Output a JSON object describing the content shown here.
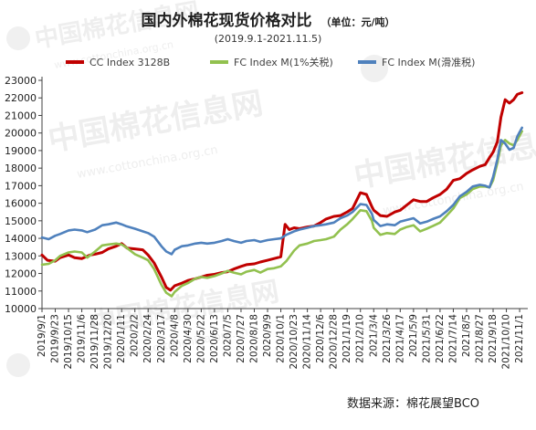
{
  "chart_data": {
    "type": "line",
    "title": "国内外棉花现货价格对比",
    "unit_note": "（单位：元/吨）",
    "subtitle": "(2019.9.1-2021.11.5)",
    "ylim": [
      10000,
      23000
    ],
    "ytick_step": 1000,
    "xlabel": "",
    "ylabel": "",
    "grid": false,
    "legend_position": "top",
    "x_ticks": [
      "2019/9/1",
      "2019/9/23",
      "2019/10/15",
      "2019/11/6",
      "2019/11/28",
      "2019/12/20",
      "2020/1/11",
      "2020/2/2",
      "2020/2/24",
      "2020/3/17",
      "2020/4/8",
      "2020/4/30",
      "2020/5/22",
      "2020/6/13",
      "2020/7/5",
      "2020/7/27",
      "2020/8/18",
      "2020/9/9",
      "2020/10/1",
      "2020/10/23",
      "2020/11/14",
      "2020/12/6",
      "2020/12/28",
      "2021/1/19",
      "2021/2/10",
      "2021/3/4",
      "2021/3/26",
      "2021/4/17",
      "2021/5/9",
      "2021/5/31",
      "2021/6/22",
      "2021/7/14",
      "2021/8/5",
      "2021/8/27",
      "2021/9/18",
      "2021/10/10",
      "2021/11/1"
    ],
    "series": [
      {
        "name": "CC Index 3128B",
        "color": "#c00000",
        "points": [
          [
            "2019/9/1",
            13050
          ],
          [
            "2019/9/10",
            12750
          ],
          [
            "2019/9/23",
            12700
          ],
          [
            "2019/10/1",
            12900
          ],
          [
            "2019/10/15",
            13050
          ],
          [
            "2019/10/25",
            12900
          ],
          [
            "2019/11/6",
            12850
          ],
          [
            "2019/11/20",
            13050
          ],
          [
            "2019/11/28",
            13100
          ],
          [
            "2019/12/10",
            13200
          ],
          [
            "2019/12/20",
            13400
          ],
          [
            "2020/1/2",
            13550
          ],
          [
            "2020/1/11",
            13700
          ],
          [
            "2020/1/20",
            13450
          ],
          [
            "2020/2/2",
            13400
          ],
          [
            "2020/2/15",
            13350
          ],
          [
            "2020/2/24",
            13050
          ],
          [
            "2020/3/5",
            12600
          ],
          [
            "2020/3/17",
            11800
          ],
          [
            "2020/3/25",
            11200
          ],
          [
            "2020/4/1",
            11050
          ],
          [
            "2020/4/8",
            11300
          ],
          [
            "2020/4/20",
            11450
          ],
          [
            "2020/4/30",
            11600
          ],
          [
            "2020/5/12",
            11700
          ],
          [
            "2020/5/22",
            11800
          ],
          [
            "2020/6/1",
            11900
          ],
          [
            "2020/6/13",
            11950
          ],
          [
            "2020/6/25",
            12050
          ],
          [
            "2020/7/5",
            12100
          ],
          [
            "2020/7/15",
            12250
          ],
          [
            "2020/7/27",
            12400
          ],
          [
            "2020/8/5",
            12500
          ],
          [
            "2020/8/18",
            12550
          ],
          [
            "2020/8/28",
            12650
          ],
          [
            "2020/9/9",
            12750
          ],
          [
            "2020/9/20",
            12850
          ],
          [
            "2020/10/1",
            12950
          ],
          [
            "2020/10/8",
            14800
          ],
          [
            "2020/10/15",
            14500
          ],
          [
            "2020/10/23",
            14600
          ],
          [
            "2020/11/1",
            14550
          ],
          [
            "2020/11/14",
            14650
          ],
          [
            "2020/11/25",
            14700
          ],
          [
            "2020/12/6",
            14900
          ],
          [
            "2020/12/15",
            15100
          ],
          [
            "2020/12/28",
            15250
          ],
          [
            "2021/1/8",
            15300
          ],
          [
            "2021/1/19",
            15500
          ],
          [
            "2021/1/28",
            15700
          ],
          [
            "2021/2/10",
            16600
          ],
          [
            "2021/2/20",
            16500
          ],
          [
            "2021/3/1",
            15800
          ],
          [
            "2021/3/4",
            15600
          ],
          [
            "2021/3/15",
            15300
          ],
          [
            "2021/3/26",
            15250
          ],
          [
            "2021/4/8",
            15500
          ],
          [
            "2021/4/17",
            15600
          ],
          [
            "2021/4/28",
            15900
          ],
          [
            "2021/5/9",
            16200
          ],
          [
            "2021/5/20",
            16100
          ],
          [
            "2021/5/31",
            16100
          ],
          [
            "2021/6/10",
            16300
          ],
          [
            "2021/6/22",
            16500
          ],
          [
            "2021/7/3",
            16800
          ],
          [
            "2021/7/14",
            17300
          ],
          [
            "2021/7/25",
            17400
          ],
          [
            "2021/8/5",
            17700
          ],
          [
            "2021/8/15",
            17900
          ],
          [
            "2021/8/27",
            18100
          ],
          [
            "2021/9/5",
            18200
          ],
          [
            "2021/9/12",
            18600
          ],
          [
            "2021/9/18",
            18900
          ],
          [
            "2021/9/25",
            19500
          ],
          [
            "2021/10/1",
            20900
          ],
          [
            "2021/10/8",
            21900
          ],
          [
            "2021/10/15",
            21700
          ],
          [
            "2021/10/22",
            21900
          ],
          [
            "2021/10/28",
            22200
          ],
          [
            "2021/11/5",
            22300
          ]
        ]
      },
      {
        "name": "FC Index M(1%关税)",
        "color": "#92c14f",
        "points": [
          [
            "2019/9/1",
            12500
          ],
          [
            "2019/9/12",
            12550
          ],
          [
            "2019/9/23",
            12750
          ],
          [
            "2019/10/1",
            13000
          ],
          [
            "2019/10/15",
            13200
          ],
          [
            "2019/10/25",
            13250
          ],
          [
            "2019/11/6",
            13200
          ],
          [
            "2019/11/15",
            12900
          ],
          [
            "2019/11/28",
            13250
          ],
          [
            "2019/12/10",
            13600
          ],
          [
            "2019/12/20",
            13650
          ],
          [
            "2020/1/2",
            13700
          ],
          [
            "2020/1/11",
            13650
          ],
          [
            "2020/1/18",
            13500
          ],
          [
            "2020/2/2",
            13100
          ],
          [
            "2020/2/15",
            12900
          ],
          [
            "2020/2/24",
            12750
          ],
          [
            "2020/3/5",
            12250
          ],
          [
            "2020/3/17",
            11350
          ],
          [
            "2020/3/25",
            10900
          ],
          [
            "2020/4/3",
            10700
          ],
          [
            "2020/4/8",
            10950
          ],
          [
            "2020/4/20",
            11300
          ],
          [
            "2020/4/30",
            11450
          ],
          [
            "2020/5/12",
            11700
          ],
          [
            "2020/5/22",
            11800
          ],
          [
            "2020/6/1",
            11750
          ],
          [
            "2020/6/13",
            11850
          ],
          [
            "2020/6/25",
            12000
          ],
          [
            "2020/7/5",
            12150
          ],
          [
            "2020/7/15",
            12050
          ],
          [
            "2020/7/27",
            11950
          ],
          [
            "2020/8/5",
            12100
          ],
          [
            "2020/8/18",
            12200
          ],
          [
            "2020/8/28",
            12050
          ],
          [
            "2020/9/9",
            12250
          ],
          [
            "2020/9/20",
            12300
          ],
          [
            "2020/10/1",
            12400
          ],
          [
            "2020/10/10",
            12700
          ],
          [
            "2020/10/23",
            13300
          ],
          [
            "2020/11/1",
            13600
          ],
          [
            "2020/11/14",
            13700
          ],
          [
            "2020/11/25",
            13850
          ],
          [
            "2020/12/6",
            13900
          ],
          [
            "2020/12/15",
            13950
          ],
          [
            "2020/12/28",
            14100
          ],
          [
            "2021/1/8",
            14500
          ],
          [
            "2021/1/19",
            14800
          ],
          [
            "2021/1/28",
            15100
          ],
          [
            "2021/2/10",
            15600
          ],
          [
            "2021/2/20",
            15550
          ],
          [
            "2021/3/1",
            15000
          ],
          [
            "2021/3/4",
            14600
          ],
          [
            "2021/3/15",
            14200
          ],
          [
            "2021/3/26",
            14300
          ],
          [
            "2021/4/8",
            14250
          ],
          [
            "2021/4/17",
            14500
          ],
          [
            "2021/4/28",
            14650
          ],
          [
            "2021/5/9",
            14750
          ],
          [
            "2021/5/20",
            14400
          ],
          [
            "2021/5/31",
            14550
          ],
          [
            "2021/6/10",
            14700
          ],
          [
            "2021/6/22",
            14900
          ],
          [
            "2021/7/3",
            15300
          ],
          [
            "2021/7/14",
            15700
          ],
          [
            "2021/7/25",
            16300
          ],
          [
            "2021/8/5",
            16500
          ],
          [
            "2021/8/15",
            16800
          ],
          [
            "2021/8/27",
            16950
          ],
          [
            "2021/9/5",
            16950
          ],
          [
            "2021/9/12",
            16900
          ],
          [
            "2021/9/18",
            17300
          ],
          [
            "2021/9/25",
            18300
          ],
          [
            "2021/10/1",
            19300
          ],
          [
            "2021/10/8",
            19600
          ],
          [
            "2021/10/15",
            19400
          ],
          [
            "2021/10/22",
            19300
          ],
          [
            "2021/10/28",
            19600
          ],
          [
            "2021/11/5",
            20100
          ]
        ]
      },
      {
        "name": "FC Index M(滑准税)",
        "color": "#4f81bd",
        "points": [
          [
            "2019/9/1",
            14050
          ],
          [
            "2019/9/12",
            13950
          ],
          [
            "2019/9/23",
            14150
          ],
          [
            "2019/10/1",
            14250
          ],
          [
            "2019/10/15",
            14450
          ],
          [
            "2019/10/25",
            14500
          ],
          [
            "2019/11/6",
            14450
          ],
          [
            "2019/11/15",
            14350
          ],
          [
            "2019/11/28",
            14500
          ],
          [
            "2019/12/10",
            14750
          ],
          [
            "2019/12/20",
            14800
          ],
          [
            "2020/1/2",
            14900
          ],
          [
            "2020/1/11",
            14800
          ],
          [
            "2020/1/18",
            14700
          ],
          [
            "2020/2/2",
            14550
          ],
          [
            "2020/2/15",
            14400
          ],
          [
            "2020/2/24",
            14300
          ],
          [
            "2020/3/5",
            14100
          ],
          [
            "2020/3/17",
            13550
          ],
          [
            "2020/3/25",
            13250
          ],
          [
            "2020/4/3",
            13100
          ],
          [
            "2020/4/8",
            13350
          ],
          [
            "2020/4/20",
            13550
          ],
          [
            "2020/4/30",
            13600
          ],
          [
            "2020/5/12",
            13700
          ],
          [
            "2020/5/22",
            13750
          ],
          [
            "2020/6/1",
            13700
          ],
          [
            "2020/6/13",
            13750
          ],
          [
            "2020/6/25",
            13850
          ],
          [
            "2020/7/5",
            13950
          ],
          [
            "2020/7/15",
            13850
          ],
          [
            "2020/7/27",
            13750
          ],
          [
            "2020/8/5",
            13850
          ],
          [
            "2020/8/18",
            13900
          ],
          [
            "2020/8/28",
            13800
          ],
          [
            "2020/9/9",
            13900
          ],
          [
            "2020/9/20",
            13950
          ],
          [
            "2020/10/1",
            14000
          ],
          [
            "2020/10/10",
            14200
          ],
          [
            "2020/10/23",
            14400
          ],
          [
            "2020/11/1",
            14500
          ],
          [
            "2020/11/14",
            14600
          ],
          [
            "2020/11/25",
            14700
          ],
          [
            "2020/12/6",
            14750
          ],
          [
            "2020/12/15",
            14800
          ],
          [
            "2020/12/28",
            14900
          ],
          [
            "2021/1/8",
            15150
          ],
          [
            "2021/1/19",
            15300
          ],
          [
            "2021/1/28",
            15500
          ],
          [
            "2021/2/10",
            15950
          ],
          [
            "2021/2/20",
            15900
          ],
          [
            "2021/3/1",
            15400
          ],
          [
            "2021/3/4",
            15050
          ],
          [
            "2021/3/15",
            14700
          ],
          [
            "2021/3/26",
            14800
          ],
          [
            "2021/4/8",
            14750
          ],
          [
            "2021/4/17",
            14950
          ],
          [
            "2021/4/28",
            15050
          ],
          [
            "2021/5/9",
            15150
          ],
          [
            "2021/5/20",
            14850
          ],
          [
            "2021/5/31",
            14950
          ],
          [
            "2021/6/10",
            15100
          ],
          [
            "2021/6/22",
            15250
          ],
          [
            "2021/7/3",
            15550
          ],
          [
            "2021/7/14",
            15900
          ],
          [
            "2021/7/25",
            16400
          ],
          [
            "2021/8/5",
            16650
          ],
          [
            "2021/8/15",
            16950
          ],
          [
            "2021/8/27",
            17050
          ],
          [
            "2021/9/5",
            17000
          ],
          [
            "2021/9/12",
            16900
          ],
          [
            "2021/9/18",
            17500
          ],
          [
            "2021/9/25",
            18500
          ],
          [
            "2021/10/1",
            19600
          ],
          [
            "2021/10/8",
            19400
          ],
          [
            "2021/10/15",
            19050
          ],
          [
            "2021/10/22",
            19150
          ],
          [
            "2021/10/28",
            19800
          ],
          [
            "2021/11/5",
            20300
          ]
        ]
      }
    ]
  },
  "footer": {
    "source": "数据来源：棉花展望BCO"
  },
  "watermark": {
    "text_cn": "中国棉花信息网",
    "text_url": "www.cottonchina.org.cn"
  }
}
